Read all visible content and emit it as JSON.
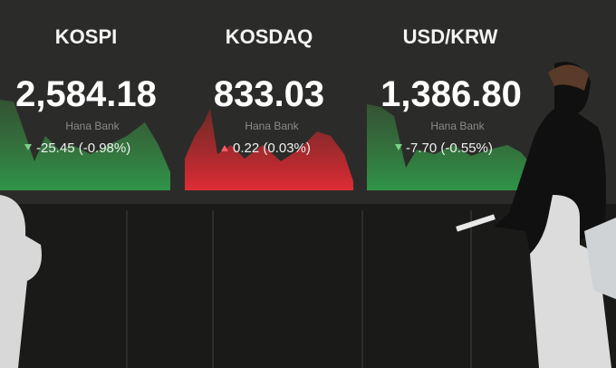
{
  "board": {
    "panels": [
      {
        "name": "KOSPI",
        "value": "2,584.18",
        "bank": "Hana Bank",
        "change": "-25.45 (-0.98%)",
        "direction": "down"
      },
      {
        "name": "KOSDAQ",
        "value": "833.03",
        "bank": "Hana Bank",
        "change": "0.22 (0.03%)",
        "direction": "up"
      },
      {
        "name": "USD/KRW",
        "value": "1,386.80",
        "bank": "Hana Bank",
        "change": "-7.70 (-0.55%)",
        "direction": "down"
      }
    ]
  }
}
